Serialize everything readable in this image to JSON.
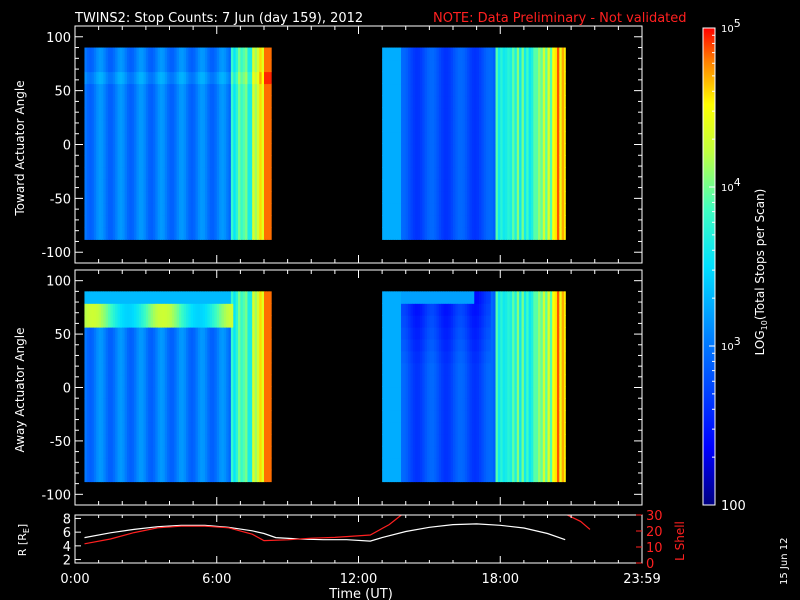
{
  "header": {
    "title": "TWINS2: Stop Counts:  7 Jun (day 159), 2012",
    "note": "NOTE: Data Preliminary - Not validated"
  },
  "side_date": "15 Jun 12",
  "colors": {
    "background": "#000000",
    "axes": "#ffffff",
    "note": "#ff2020",
    "l_shell": "#ff2020",
    "r_line": "#ffffff"
  },
  "chart_data": [
    {
      "type": "heatmap",
      "name": "toward",
      "ylabel": "Toward Actuator Angle",
      "ylim": [
        -110,
        110
      ],
      "yticks": [
        100,
        50,
        0,
        -50,
        -100
      ],
      "xlim": [
        0,
        24
      ],
      "angle_range": [
        -88,
        90
      ],
      "data_intervals_hours": [
        [
          0.4,
          8.3
        ],
        [
          13.0,
          20.75
        ]
      ]
    },
    {
      "type": "heatmap",
      "name": "away",
      "ylabel": "Away Actuator Angle",
      "ylim": [
        -110,
        110
      ],
      "yticks": [
        100,
        50,
        0,
        -50,
        -100
      ],
      "xlim": [
        0,
        24
      ],
      "angle_range": [
        -88,
        90
      ],
      "data_intervals_hours": [
        [
          0.4,
          8.3
        ],
        [
          13.0,
          20.75
        ]
      ]
    },
    {
      "type": "line",
      "name": "orbit",
      "ylabel": "R [R",
      "ylabel_sub": "E",
      "ylabel_end": "]",
      "ylim": [
        1.5,
        8.5
      ],
      "yticks": [
        2,
        4,
        6,
        8
      ],
      "y2label": "L Shell",
      "y2lim": [
        0,
        30
      ],
      "y2ticks": [
        0,
        10,
        20,
        30
      ],
      "xlabel": "Time (UT)",
      "xlim": [
        0,
        24
      ],
      "xtick_values": [
        0,
        6,
        12,
        18,
        24
      ],
      "xticks": [
        "0:00",
        "6:00",
        "12:00",
        "18:00",
        "23:59"
      ],
      "series": [
        {
          "key": "r",
          "x": [
            0.4,
            1.5,
            2.5,
            3.5,
            4.5,
            5.5,
            6.5,
            7.5,
            8.0,
            8.5,
            9.5,
            10.5,
            11.5,
            12.5,
            13.0,
            14.0,
            15.0,
            16.0,
            17.0,
            18.0,
            19.0,
            20.0,
            20.75
          ],
          "y": [
            5.2,
            5.9,
            6.4,
            6.8,
            7.0,
            7.0,
            6.7,
            6.2,
            5.8,
            5.2,
            5.0,
            4.9,
            4.9,
            4.7,
            5.2,
            6.1,
            6.7,
            7.1,
            7.2,
            7.0,
            6.6,
            5.8,
            4.9
          ]
        },
        {
          "key": "l",
          "x": [
            0.4,
            1.5,
            2.5,
            3.5,
            4.5,
            5.5,
            6.5,
            7.5,
            8.0,
            9.0,
            10.0,
            11.0,
            12.5,
            13.3,
            13.9,
            20.7,
            21.4,
            21.8
          ],
          "y": [
            12,
            15,
            19,
            22,
            23,
            23,
            22,
            18,
            14,
            14.5,
            15.5,
            16,
            17.5,
            24,
            31,
            31,
            26,
            21
          ]
        }
      ]
    },
    {
      "type": "colorbar",
      "label_pre": "LOG",
      "label_sub": "10",
      "label_post": "(Total Stops per Scan)",
      "range": [
        100,
        100000
      ],
      "scale": "log",
      "ticks": [
        {
          "value": 100000,
          "base": "10",
          "exp": "5"
        },
        {
          "value": 10000,
          "base": "10",
          "exp": "4"
        },
        {
          "value": 1000,
          "base": "10",
          "exp": "3"
        },
        {
          "value": 100,
          "text": "100"
        }
      ]
    }
  ]
}
